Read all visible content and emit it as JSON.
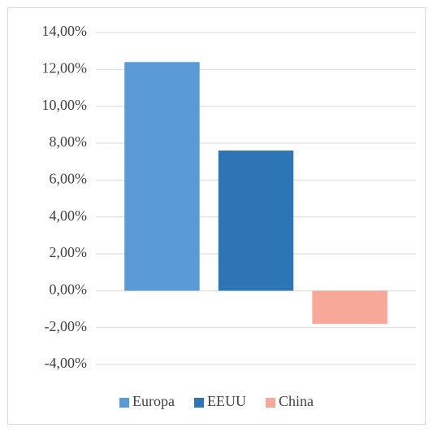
{
  "chart_data": {
    "type": "bar",
    "categories": [
      null
    ],
    "series": [
      {
        "name": "Europa",
        "color": "#5b9bd5",
        "values": [
          12.4
        ]
      },
      {
        "name": "EEUU",
        "color": "#2e75b6",
        "values": [
          7.6
        ]
      },
      {
        "name": "China",
        "color": "#f8a898",
        "values": [
          -1.8
        ]
      }
    ],
    "ylim": [
      -4,
      14
    ],
    "yticks": [
      {
        "value": -4,
        "label": "-4,00%"
      },
      {
        "value": -2,
        "label": "-2,00%"
      },
      {
        "value": 0,
        "label": "0,00%"
      },
      {
        "value": 2,
        "label": "2,00%"
      },
      {
        "value": 4,
        "label": "4,00%"
      },
      {
        "value": 6,
        "label": "6,00%"
      },
      {
        "value": 8,
        "label": "8,00%"
      },
      {
        "value": 10,
        "label": "10,00%"
      },
      {
        "value": 12,
        "label": "12,00%"
      },
      {
        "value": 14,
        "label": "14,00%"
      }
    ],
    "grid": true,
    "legend": "bottom"
  }
}
